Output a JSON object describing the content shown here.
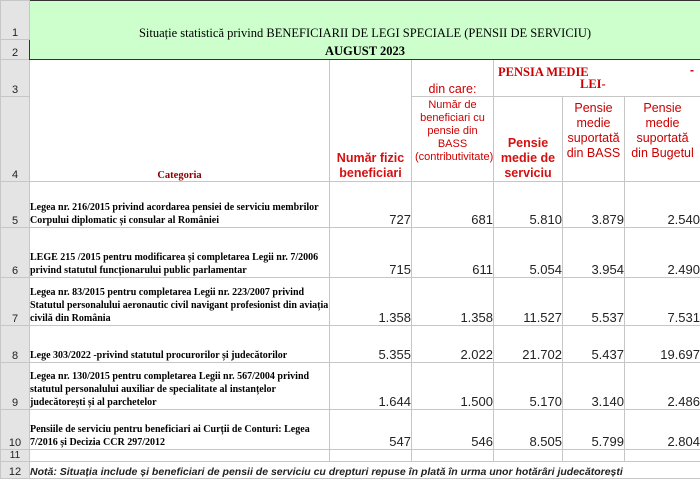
{
  "title_line1": "Situație statistică privind BENEFICIARII DE LEGI SPECIALE (PENSII DE SERVICIU)",
  "title_line2": "AUGUST 2023",
  "row_numbers": [
    "1",
    "2",
    "3",
    "4",
    "5",
    "6",
    "7",
    "8",
    "9",
    "10",
    "11",
    "12"
  ],
  "header": {
    "categoria": "Categoria",
    "numar_fizic": "Număr fizic beneficiari",
    "din_care": "din care:",
    "numar_bass": "Număr de beneficiari cu pensie din BASS (contributivitate)",
    "pensia_medie": "PENSIA MEDIE",
    "dash": "-",
    "lei": "LEI-",
    "pensie_medie_serviciu": "Pensie medie de serviciu",
    "pensie_bass": "Pensie medie suportată din BASS",
    "pensie_buget": "Pensie medie suportată din Bugetul"
  },
  "rows": [
    {
      "categoria": "Legea nr. 216/2015 privind acordarea pensiei de serviciu membrilor Corpului diplomatic și consular al României",
      "numar_fizic": "727",
      "numar_bass": "681",
      "pensie_medie": "5.810",
      "pensie_bass": "3.879",
      "pensie_buget": "2.540"
    },
    {
      "categoria": "LEGE 215 /2015 pentru modificarea și completarea Legii nr. 7/2006 privind statutul funcționarului public parlamentar",
      "numar_fizic": "715",
      "numar_bass": "611",
      "pensie_medie": "5.054",
      "pensie_bass": "3.954",
      "pensie_buget": "2.490"
    },
    {
      "categoria": "Legea nr. 83/2015 pentru completarea Legii nr. 223/2007 privind Statutul personalului aeronautic civil navigant profesionist din aviația civilă din România",
      "numar_fizic": "1.358",
      "numar_bass": "1.358",
      "pensie_medie": "11.527",
      "pensie_bass": "5.537",
      "pensie_buget": "7.531"
    },
    {
      "categoria": "Lege 303/2022 -privind statutul procurorilor și judecătorilor",
      "numar_fizic": "5.355",
      "numar_bass": "2.022",
      "pensie_medie": "21.702",
      "pensie_bass": "5.437",
      "pensie_buget": "19.697"
    },
    {
      "categoria": "Legea nr. 130/2015 pentru completarea Legii nr. 567/2004 privind statutul personalului auxiliar de specialitate al instanțelor judecătorești și al parchetelor",
      "numar_fizic": "1.644",
      "numar_bass": "1.500",
      "pensie_medie": "5.170",
      "pensie_bass": "3.140",
      "pensie_buget": "2.486"
    },
    {
      "categoria": "Pensiile de serviciu pentru beneficiari ai Curții de Conturi: Legea 7/2016 și Decizia CCR 297/2012",
      "numar_fizic": "547",
      "numar_bass": "546",
      "pensie_medie": "8.505",
      "pensie_bass": "5.799",
      "pensie_buget": "2.804"
    }
  ],
  "note": "Notă: Situația include și beneficiari de pensii de serviciu cu drepturi repuse în plată în urma unor hotărâri judecătorești",
  "colors": {
    "title_bg": "#ccffcc",
    "row_header_bg": "#e4e4e4",
    "red_text": "#cc0000"
  }
}
